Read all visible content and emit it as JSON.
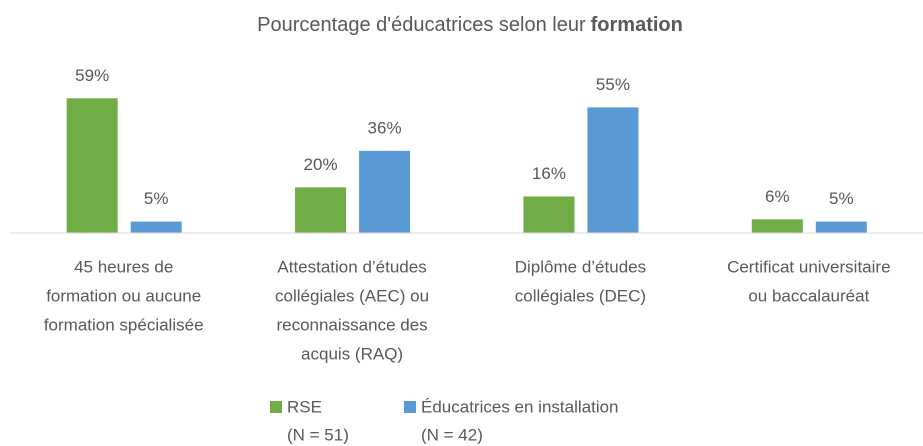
{
  "chart_data": {
    "type": "bar",
    "title": [
      "Pourcentage d'éducatrices selon leur",
      "formation"
    ],
    "categories": [
      [
        "45 heures de",
        "formation ou aucune",
        "formation spécialisée"
      ],
      [
        "Attestation d’études",
        "collégiales (AEC) ou",
        "reconnaissance des",
        "acquis (RAQ)"
      ],
      [
        "Diplôme d’études",
        "collégiales (DEC)"
      ],
      [
        "Certificat universitaire",
        "ou baccalauréat"
      ]
    ],
    "series": [
      {
        "name": "RSE",
        "n_label": "(N = 51)",
        "color": "#70ad47",
        "values": [
          59,
          20,
          16,
          6
        ],
        "value_labels": [
          "59%",
          "20%",
          "16%",
          "6%"
        ]
      },
      {
        "name": "Éducatrices en installation",
        "n_label": "(N = 42)",
        "color": "#5b9bd5",
        "values": [
          5,
          36,
          55,
          5
        ],
        "value_labels": [
          "5%",
          "36%",
          "55%",
          "5%"
        ]
      }
    ],
    "ylim": [
      0,
      60
    ],
    "grid": false
  }
}
